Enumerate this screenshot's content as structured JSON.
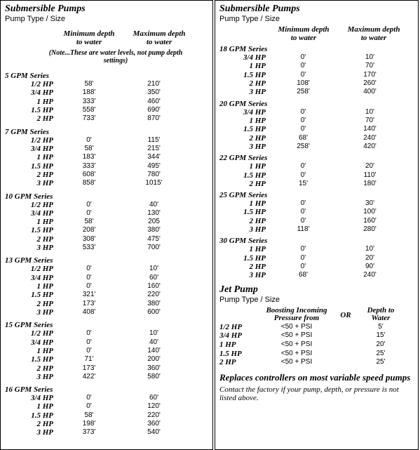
{
  "left": {
    "title": "Submersible Pumps",
    "subtitle": "Pump Type / Size",
    "col1": "Minimum depth to water",
    "col2": "Maximum depth to water",
    "note": "(Note...These are water levels, not pump depth settings)",
    "series": [
      {
        "name": "5 GPM Series",
        "rows": [
          {
            "hp": "1/2 HP",
            "min": "58'",
            "max": "210'"
          },
          {
            "hp": "3/4 HP",
            "min": "188'",
            "max": "350'"
          },
          {
            "hp": "1   HP",
            "min": "333'",
            "max": "460'"
          },
          {
            "hp": "1.5 HP",
            "min": "558'",
            "max": "690'"
          },
          {
            "hp": "2 HP",
            "min": "733'",
            "max": "870'"
          }
        ]
      },
      {
        "name": "7 GPM Series",
        "rows": [
          {
            "hp": "1/2 HP",
            "min": "0'",
            "max": "115'"
          },
          {
            "hp": "3/4 HP",
            "min": "58'",
            "max": "215'"
          },
          {
            "hp": "1 HP",
            "min": "183'",
            "max": "344'"
          },
          {
            "hp": "1.5 HP",
            "min": "333'",
            "max": "495'"
          },
          {
            "hp": "2 HP",
            "min": "608'",
            "max": "780'"
          },
          {
            "hp": "3 HP",
            "min": "858'",
            "max": "1015'"
          }
        ]
      },
      {
        "name": "10 GPM Series",
        "rows": [
          {
            "hp": "1/2 HP",
            "min": "0'",
            "max": "40'"
          },
          {
            "hp": "3/4 HP",
            "min": "0'",
            "max": "130'"
          },
          {
            "hp": "1 HP",
            "min": "58'",
            "max": "205"
          },
          {
            "hp": "1.5 HP",
            "min": "208'",
            "max": "380'"
          },
          {
            "hp": "2 HP",
            "min": "308'",
            "max": "475'"
          },
          {
            "hp": "3 HP",
            "min": "533'",
            "max": "700'"
          }
        ]
      },
      {
        "name": "13 GPM Series",
        "rows": [
          {
            "hp": "1/2 HP",
            "min": "0'",
            "max": "10'"
          },
          {
            "hp": "3/4 HP",
            "min": "0'",
            "max": "60'"
          },
          {
            "hp": "1 HP",
            "min": "0'",
            "max": "160'"
          },
          {
            "hp": "1.5 HP",
            "min": "321'",
            "max": "220'"
          },
          {
            "hp": "2 HP",
            "min": "173'",
            "max": "380'"
          },
          {
            "hp": "3 HP",
            "min": "408'",
            "max": "600'"
          }
        ]
      },
      {
        "name": "15 GPM Series",
        "rows": [
          {
            "hp": "1/2 HP",
            "min": "0'",
            "max": "10'"
          },
          {
            "hp": "3/4 HP",
            "min": "0'",
            "max": "40'"
          },
          {
            "hp": "1 HP",
            "min": "0'",
            "max": "140'"
          },
          {
            "hp": "1.5 HP",
            "min": "71'",
            "max": "200'"
          },
          {
            "hp": "2 HP",
            "min": "173'",
            "max": "360'"
          },
          {
            "hp": "3 HP",
            "min": "422'",
            "max": "580'"
          }
        ]
      },
      {
        "name": "16 GPM Series",
        "rows": [
          {
            "hp": "3/4 HP",
            "min": "0'",
            "max": "60'"
          },
          {
            "hp": "1   HP",
            "min": "0'",
            "max": "120'"
          },
          {
            "hp": "1.5  HP",
            "min": "58'",
            "max": "220'"
          },
          {
            "hp": "2 HP",
            "min": "198'",
            "max": "360'"
          },
          {
            "hp": "3 HP",
            "min": "373'",
            "max": "540'"
          }
        ]
      }
    ]
  },
  "right": {
    "title": "Submersible Pumps",
    "subtitle": "Pump Type / Size",
    "col1": "Minimum depth to water",
    "col2": "Maximum depth to water",
    "series": [
      {
        "name": "18 GPM Series",
        "rows": [
          {
            "hp": "3/4 HP",
            "min": "0'",
            "max": "10'"
          },
          {
            "hp": "1 HP",
            "min": "0'",
            "max": "70'"
          },
          {
            "hp": "1.5 HP",
            "min": "0'",
            "max": "170'"
          },
          {
            "hp": "2 HP",
            "min": "108'",
            "max": "260'"
          },
          {
            "hp": "3 HP",
            "min": "258'",
            "max": "400'"
          }
        ]
      },
      {
        "name": "20 GPM Series",
        "rows": [
          {
            "hp": "3/4 HP",
            "min": "0'",
            "max": "10'"
          },
          {
            "hp": "1 HP",
            "min": "0'",
            "max": "70'"
          },
          {
            "hp": "1.5 HP",
            "min": "0'",
            "max": "140'"
          },
          {
            "hp": "2 HP",
            "min": "68'",
            "max": "240'"
          },
          {
            "hp": "3 HP",
            "min": "258'",
            "max": "420'"
          }
        ]
      },
      {
        "name": "22  GPM Series",
        "rows": [
          {
            "hp": "1 HP",
            "min": "0'",
            "max": "20'"
          },
          {
            "hp": "1.5 HP",
            "min": "0'",
            "max": "110'"
          },
          {
            "hp": "2 HP",
            "min": "15'",
            "max": "180'"
          }
        ]
      },
      {
        "name": "25 GPM Series",
        "rows": [
          {
            "hp": "1 HP",
            "min": "0'",
            "max": "30'"
          },
          {
            "hp": "1.5 HP",
            "min": "0'",
            "max": "100'"
          },
          {
            "hp": "2 HP",
            "min": "0'",
            "max": "160'"
          },
          {
            "hp": "3 HP",
            "min": "118'",
            "max": "280'"
          }
        ]
      },
      {
        "name": "30 GPM Series",
        "rows": [
          {
            "hp": "1 HP",
            "min": "0'",
            "max": "10'"
          },
          {
            "hp": "1.5 HP",
            "min": "0'",
            "max": "20'"
          },
          {
            "hp": "2 HP",
            "min": "0'",
            "max": "90'"
          },
          {
            "hp": "3 HP",
            "min": "68'",
            "max": "240'"
          }
        ]
      }
    ],
    "jet_title": "Jet Pump",
    "jet_subtitle": "Pump Type / Size",
    "jet_col1": "Boosting Incoming Pressure from",
    "jet_or": "OR",
    "jet_col2": "Depth to Water",
    "jet_rows": [
      {
        "hp": "1/2 HP",
        "pr": "<50 + PSI",
        "dw": "5'"
      },
      {
        "hp": "3/4 HP",
        "pr": "<50 + PSI",
        "dw": "15'"
      },
      {
        "hp": "1 HP",
        "pr": "<50 + PSI",
        "dw": "20'"
      },
      {
        "hp": "1.5 HP",
        "pr": "<50 + PSI",
        "dw": "25'"
      },
      {
        "hp": "2 HP",
        "pr": "<50 + PSI",
        "dw": "25'"
      }
    ],
    "replace_text": "Replaces controllers on most variable speed pumps",
    "contact_text": "Contact the factory if your pump, depth, or pressure is not listed above."
  }
}
